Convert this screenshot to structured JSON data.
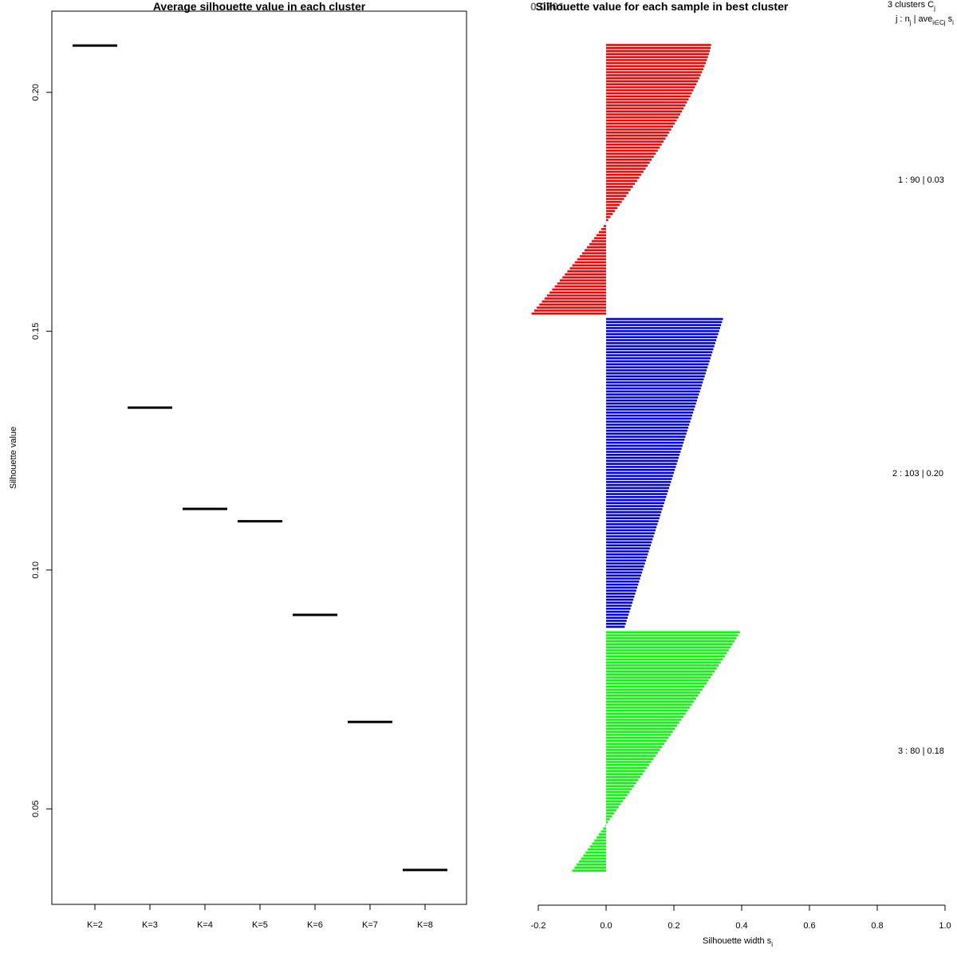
{
  "chart_data": [
    {
      "type": "segment",
      "title": "Average silhouette value in each cluster",
      "xlabel": "",
      "ylabel": "Silhouette value",
      "categories": [
        "K=2",
        "K=3",
        "K=4",
        "K=5",
        "K=6",
        "K=7",
        "K=8"
      ],
      "values": [
        0.2098,
        0.134,
        0.1128,
        0.1102,
        0.0906,
        0.0682,
        0.0372
      ],
      "ylim": [
        0.03,
        0.217
      ],
      "yticks": [
        "0.05",
        "0.10",
        "0.15",
        "0.20"
      ],
      "color": "#000000"
    },
    {
      "type": "silhouette",
      "title": "Silhouette value for each sample in best cluster",
      "overlay_label": "0.0701",
      "xlabel": "Silhouette width s",
      "xlabel_sub": "i",
      "xlim": [
        -0.2,
        1.0
      ],
      "xticks": [
        "-0.2",
        "0.0",
        "0.2",
        "0.4",
        "0.6",
        "0.8",
        "1.0"
      ],
      "header_line1": "3  clusters  C",
      "header_line1_sub": "j",
      "header_line2": "j :  n",
      "header_line2_sub": "j",
      "header_line2_mid": " | ave",
      "header_line2_mid_sub": "i∈Cj",
      "header_line2_end": "  s",
      "header_line2_end_sub": "i",
      "clusters": [
        {
          "id": 1,
          "n": 90,
          "avg": "0.03",
          "label": "1 :   90  |  0.03",
          "color": "#ff0000",
          "range": [
            0.31,
            -0.22
          ],
          "curve": 1.3
        },
        {
          "id": 2,
          "n": 103,
          "avg": "0.20",
          "label": "2 :   103  |  0.20",
          "color": "#0000ff",
          "range": [
            0.345,
            0.055
          ],
          "curve": 1.0
        },
        {
          "id": 3,
          "n": 80,
          "avg": "0.18",
          "label": "3 :   80  |  0.18",
          "color": "#00ff00",
          "range": [
            0.395,
            -0.1
          ],
          "curve": 1.05
        }
      ]
    }
  ]
}
